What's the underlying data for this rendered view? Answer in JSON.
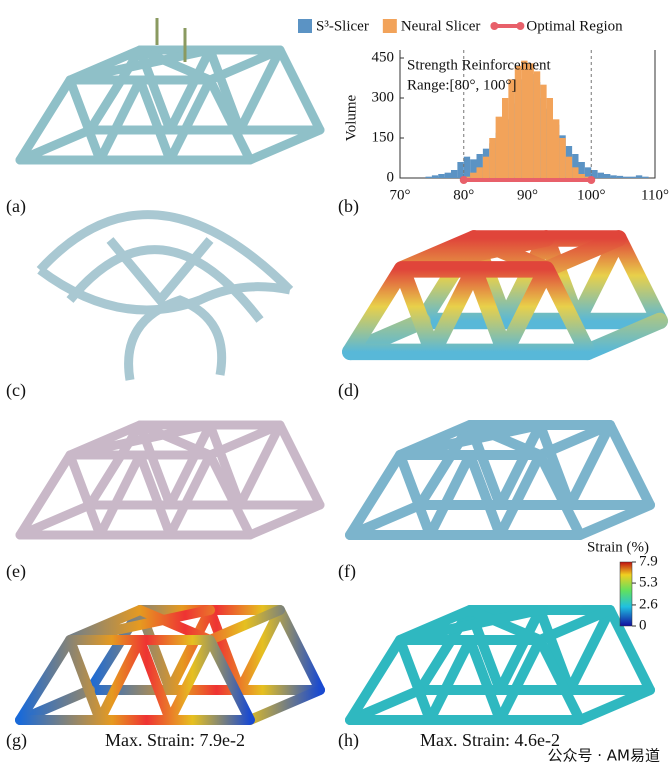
{
  "chart_data": {
    "type": "histogram",
    "ylabel": "Volume",
    "annotations": [
      "Strength Reinforcement",
      "Range:[80°, 100°]"
    ],
    "bins": [
      74,
      75,
      76,
      77,
      78,
      79,
      80,
      81,
      82,
      83,
      84,
      85,
      86,
      87,
      88,
      89,
      90,
      91,
      92,
      93,
      94,
      95,
      96,
      97,
      98,
      99,
      100,
      101,
      102,
      103,
      104,
      105,
      106,
      107,
      108,
      109,
      110
    ],
    "series": [
      {
        "name": "S³-Slicer",
        "color": "#5b93c4",
        "values": [
          5,
          10,
          15,
          20,
          30,
          60,
          80,
          70,
          90,
          110,
          130,
          170,
          220,
          280,
          330,
          370,
          390,
          360,
          300,
          260,
          200,
          160,
          120,
          90,
          60,
          40,
          30,
          20,
          15,
          10,
          8,
          5,
          5,
          10,
          5,
          0
        ]
      },
      {
        "name": "Neural Slicer",
        "color": "#f2a35a",
        "values": [
          0,
          0,
          0,
          0,
          0,
          0,
          5,
          20,
          40,
          80,
          150,
          230,
          300,
          370,
          420,
          440,
          430,
          400,
          350,
          300,
          220,
          150,
          80,
          40,
          15,
          5,
          0,
          0,
          0,
          0,
          0,
          0,
          0,
          0,
          0,
          0
        ]
      }
    ],
    "xlim": [
      70,
      110
    ],
    "xticks": [
      {
        "value": 70,
        "label": "70°"
      },
      {
        "value": 80,
        "label": "80°"
      },
      {
        "value": 90,
        "label": "90°"
      },
      {
        "value": 100,
        "label": "100°"
      },
      {
        "value": 110,
        "label": "110°"
      }
    ],
    "ylim": [
      0,
      450
    ],
    "yticks": [
      0,
      150,
      300,
      450
    ],
    "optimal_region": {
      "name": "Optimal Region",
      "color": "#e8606a",
      "range": [
        80,
        100
      ]
    },
    "legend": "top"
  },
  "figure": {
    "panel_labels": [
      "(a)",
      "(b)",
      "(c)",
      "(d)",
      "(e)",
      "(f)",
      "(g)",
      "(h)"
    ],
    "captions": [
      "Max. Strain: 7.9e-2",
      "Max. Strain: 4.6e-2"
    ],
    "colorbar": {
      "title": "Strain (%)",
      "range": [
        0,
        7.9
      ],
      "ticks": [
        7.9,
        5.3,
        2.6,
        0
      ]
    },
    "watermark": "公众号 · AM易道"
  }
}
